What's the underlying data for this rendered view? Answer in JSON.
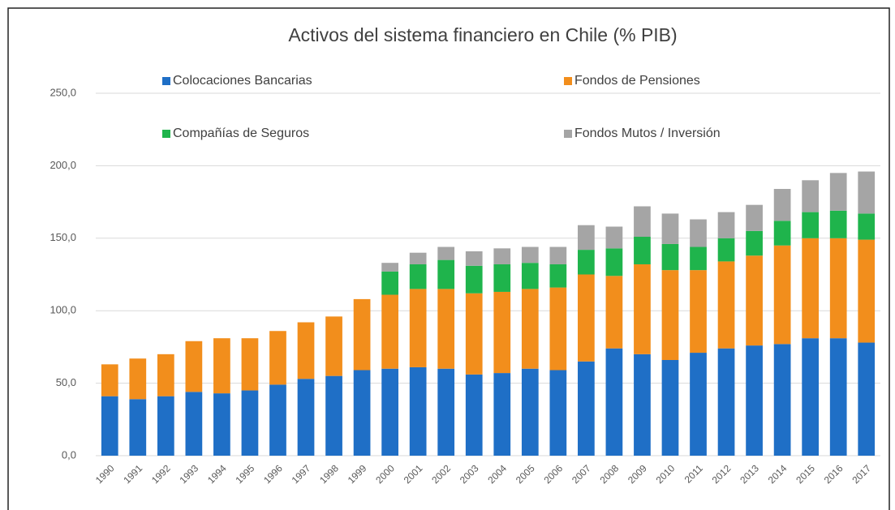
{
  "chart_data": {
    "type": "stacked_bar",
    "title": "Activos del sistema financiero en Chile (% PIB)",
    "categories": [
      "1990",
      "1991",
      "1992",
      "1993",
      "1994",
      "1995",
      "1996",
      "1997",
      "1998",
      "1999",
      "2000",
      "2001",
      "2002",
      "2003",
      "2004",
      "2005",
      "2006",
      "2007",
      "2008",
      "2009",
      "2010",
      "2011",
      "2012",
      "2013",
      "2014",
      "2015",
      "2016",
      "2017"
    ],
    "series": [
      {
        "name": "Colocaciones Bancarias",
        "color": "#1f6fc6",
        "values": [
          41,
          39,
          41,
          44,
          43,
          45,
          49,
          53,
          55,
          59,
          60,
          61,
          60,
          56,
          57,
          60,
          59,
          65,
          74,
          70,
          66,
          71,
          74,
          76,
          77,
          81,
          81,
          78
        ]
      },
      {
        "name": "Fondos de Pensiones",
        "color": "#f28e1c",
        "values": [
          22,
          28,
          29,
          35,
          38,
          36,
          37,
          39,
          41,
          49,
          51,
          54,
          55,
          56,
          56,
          55,
          57,
          60,
          50,
          62,
          62,
          57,
          60,
          62,
          68,
          69,
          69,
          71
        ]
      },
      {
        "name": "Compañías de Seguros",
        "color": "#1fb44c",
        "values": [
          null,
          null,
          null,
          null,
          null,
          null,
          null,
          null,
          null,
          null,
          16,
          17,
          20,
          19,
          19,
          18,
          16,
          17,
          19,
          19,
          18,
          16,
          16,
          17,
          17,
          18,
          19,
          18
        ]
      },
      {
        "name": "Fondos Mutos / Inversión",
        "color": "#a5a5a5",
        "values": [
          null,
          null,
          null,
          null,
          null,
          null,
          null,
          null,
          null,
          null,
          6,
          8,
          9,
          10,
          11,
          11,
          12,
          17,
          15,
          21,
          21,
          19,
          18,
          18,
          22,
          22,
          26,
          29
        ]
      }
    ],
    "ylim": [
      0,
      250
    ],
    "yticks": [
      {
        "value": 0,
        "label": "0,0"
      },
      {
        "value": 50,
        "label": "50,0"
      },
      {
        "value": 100,
        "label": "100,0"
      },
      {
        "value": 150,
        "label": "150,0"
      },
      {
        "value": 200,
        "label": "200,0"
      },
      {
        "value": 250,
        "label": "250,0"
      }
    ],
    "grid": true,
    "legend": "top"
  }
}
